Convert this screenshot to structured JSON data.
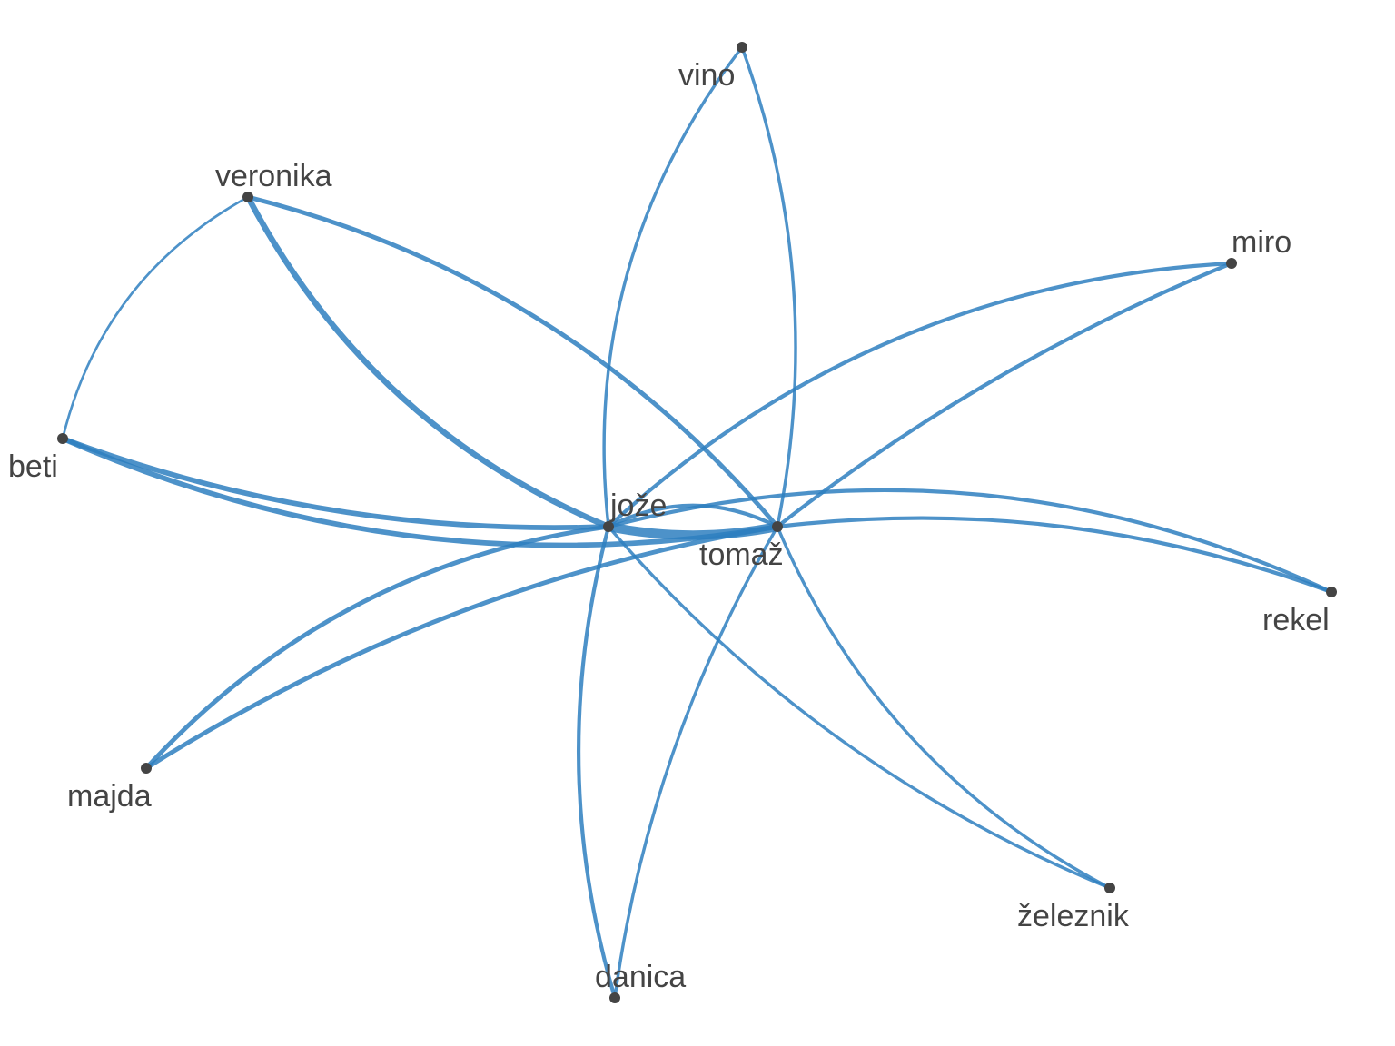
{
  "graph": {
    "edge_color": "#2e7fbf",
    "node_color": "#444444",
    "label_color": "#444444",
    "nodes": [
      {
        "id": "vino",
        "label": "vino"
      },
      {
        "id": "veronika",
        "label": "veronika"
      },
      {
        "id": "miro",
        "label": "miro"
      },
      {
        "id": "beti",
        "label": "beti"
      },
      {
        "id": "joze",
        "label": "jože"
      },
      {
        "id": "tomaz",
        "label": "tomaž"
      },
      {
        "id": "rekel",
        "label": "rekel"
      },
      {
        "id": "majda",
        "label": "majda"
      },
      {
        "id": "zeleznik",
        "label": "železnik"
      },
      {
        "id": "danica",
        "label": "danica"
      }
    ],
    "edges": [
      {
        "source": "veronika",
        "target": "joze",
        "weight": 7
      },
      {
        "source": "veronika",
        "target": "tomaz",
        "weight": 5
      },
      {
        "source": "veronika",
        "target": "beti",
        "weight": 2
      },
      {
        "source": "beti",
        "target": "joze",
        "weight": 6
      },
      {
        "source": "beti",
        "target": "tomaz",
        "weight": 6
      },
      {
        "source": "vino",
        "target": "joze",
        "weight": 3
      },
      {
        "source": "vino",
        "target": "tomaz",
        "weight": 3
      },
      {
        "source": "miro",
        "target": "joze",
        "weight": 4
      },
      {
        "source": "miro",
        "target": "tomaz",
        "weight": 4
      },
      {
        "source": "joze",
        "target": "tomaz",
        "weight": 12
      },
      {
        "source": "joze",
        "target": "tomaz",
        "weight": 4
      },
      {
        "source": "joze",
        "target": "rekel",
        "weight": 4
      },
      {
        "source": "tomaz",
        "target": "rekel",
        "weight": 4
      },
      {
        "source": "majda",
        "target": "joze",
        "weight": 5
      },
      {
        "source": "majda",
        "target": "tomaz",
        "weight": 5
      },
      {
        "source": "zeleznik",
        "target": "joze",
        "weight": 3
      },
      {
        "source": "zeleznik",
        "target": "tomaz",
        "weight": 3
      },
      {
        "source": "danica",
        "target": "joze",
        "weight": 4
      },
      {
        "source": "danica",
        "target": "tomaz",
        "weight": 3
      }
    ]
  }
}
